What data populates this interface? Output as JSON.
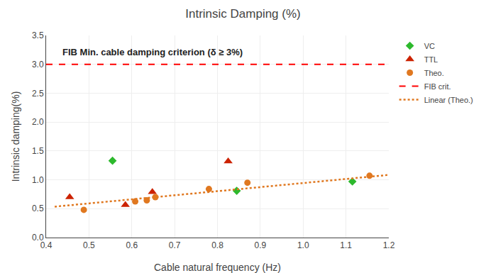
{
  "chart_data": {
    "type": "scatter",
    "title": "Intrinsic Damping (%)",
    "x_label": "Cable natural frequency (Hz)",
    "y_label": "Intrinsic damping(%)",
    "xlim": [
      0.4,
      1.2
    ],
    "ylim": [
      0.0,
      3.5
    ],
    "xticks": [
      0.4,
      0.5,
      0.6,
      0.7,
      0.8,
      0.9,
      {
        "value": 1.0,
        "label": "1.0"
      },
      1.1,
      1.2
    ],
    "yticks": [
      {
        "value": 0,
        "label": "0.0"
      },
      0.5,
      {
        "value": 1,
        "label": "1.0"
      },
      1.5,
      {
        "value": 2,
        "label": "2.0"
      },
      2.5,
      {
        "value": 3,
        "label": "3.0"
      },
      3.5
    ],
    "grid": true,
    "legend": "upper right",
    "series": [
      {
        "name": "VC",
        "type": "scatter",
        "marker": "diamond",
        "color": "#2db92d",
        "x": [
          0.555,
          0.845,
          1.115
        ],
        "values": [
          1.33,
          0.81,
          0.97
        ]
      },
      {
        "name": "TTL",
        "type": "scatter",
        "marker": "triangle",
        "color": "#cc2200",
        "x": [
          0.455,
          0.585,
          0.648,
          0.825
        ],
        "values": [
          0.7,
          0.565,
          0.79,
          1.32
        ]
      },
      {
        "name": "Theo.",
        "type": "scatter",
        "marker": "circle",
        "color": "#e07820",
        "x": [
          0.488,
          0.608,
          0.635,
          0.655,
          0.78,
          0.87,
          1.155
        ],
        "values": [
          0.48,
          0.625,
          0.645,
          0.7,
          0.84,
          0.95,
          1.07
        ]
      },
      {
        "name": "FIB crit.",
        "type": "hline",
        "line_style": "dashed",
        "color": "red",
        "values": [
          3.0
        ]
      },
      {
        "name": "Linear (Theo.)",
        "type": "line",
        "line_style": "dotted",
        "color": "#e07820",
        "x": [
          0.42,
          1.2
        ],
        "values": [
          0.535,
          1.085
        ]
      }
    ],
    "annotations": [
      {
        "text": "FIB Min. cable damping criterion (δ ≥ 3%)",
        "x": 0.435,
        "y": 3.1
      }
    ]
  }
}
